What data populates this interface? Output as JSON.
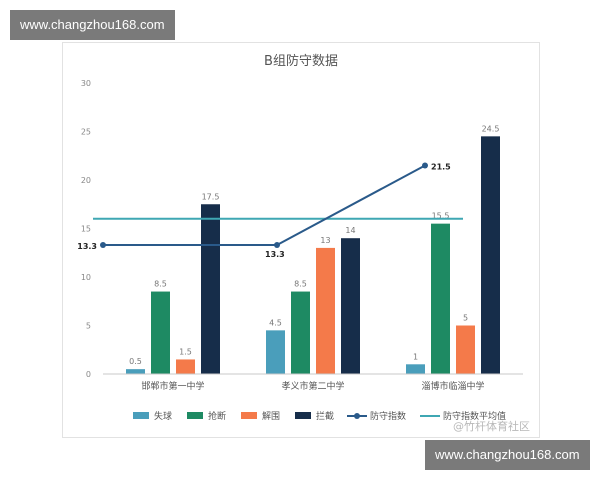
{
  "watermarks": {
    "top": "www.changzhou168.com",
    "bottom": "www.changzhou168.com",
    "source": "@竹杆体育社区"
  },
  "chart_data": {
    "type": "bar",
    "title": "B组防守数据",
    "categories": [
      "邯郸市第一中学",
      "孝义市第二中学",
      "淄博市临淄中学"
    ],
    "ylim": [
      0,
      30
    ],
    "yticks": [
      0,
      5,
      10,
      15,
      20,
      25,
      30
    ],
    "grid": false,
    "legend_position": "bottom",
    "series": [
      {
        "name": "失球",
        "kind": "bar",
        "color": "#4a9ebb",
        "values": [
          0.5,
          4.5,
          1
        ]
      },
      {
        "name": "抢断",
        "kind": "bar",
        "color": "#1e8a63",
        "values": [
          8.5,
          8.5,
          15.5
        ]
      },
      {
        "name": "解围",
        "kind": "bar",
        "color": "#f47a4a",
        "values": [
          1.5,
          13,
          5
        ]
      },
      {
        "name": "拦截",
        "kind": "bar",
        "color": "#162d4a",
        "values": [
          17.5,
          14,
          24.5
        ]
      },
      {
        "name": "防守指数",
        "kind": "line",
        "color": "#2a5a8a",
        "values": [
          13.3,
          13.3,
          21.5
        ]
      },
      {
        "name": "防守指数平均值",
        "kind": "hline",
        "color": "#3fa7b3",
        "value": 16
      }
    ],
    "bar_labels": [
      [
        "0.5",
        "8.5",
        "1.5",
        "17.5"
      ],
      [
        "4.5",
        "8.5",
        "13",
        "14"
      ],
      [
        "1",
        "15.5",
        "5",
        "24.5"
      ]
    ],
    "line_labels": [
      "13.3",
      "13.3",
      "21.5"
    ]
  }
}
